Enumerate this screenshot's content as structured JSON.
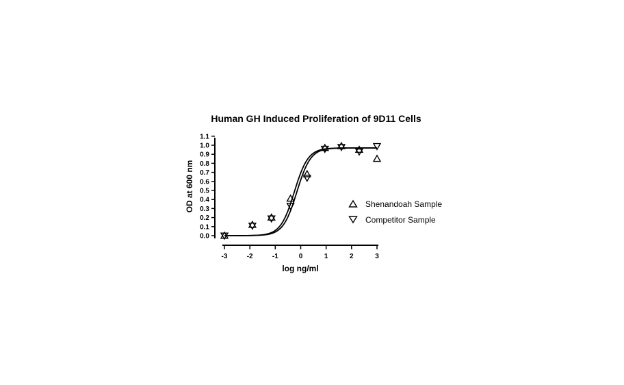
{
  "chart_data": {
    "type": "scatter",
    "title": "Human GH Induced Proliferation of 9D11 Cells",
    "xlabel": "log ng/ml",
    "ylabel": "OD at 600 nm",
    "xlim": [
      -3,
      3
    ],
    "ylim": [
      0.0,
      1.1
    ],
    "x_ticks": [
      -3,
      -2,
      -1,
      0,
      1,
      2,
      3
    ],
    "y_ticks": [
      0.0,
      0.1,
      0.2,
      0.3,
      0.4,
      0.5,
      0.6,
      0.7,
      0.8,
      0.9,
      1.0,
      1.1
    ],
    "x_tick_labels": [
      "-3",
      "-2",
      "-1",
      "0",
      "1",
      "2",
      "3"
    ],
    "y_tick_labels": [
      "0.0",
      "0.1",
      "0.2",
      "0.3",
      "0.4",
      "0.5",
      "0.6",
      "0.7",
      "0.8",
      "0.9",
      "1.0",
      "1.1"
    ],
    "legend_position": "right",
    "series": [
      {
        "name": "Shenandoah Sample",
        "marker": "triangle-up",
        "x": [
          -3.0,
          -1.9,
          -1.15,
          -0.4,
          0.25,
          0.95,
          1.6,
          2.3,
          3.0
        ],
        "y": [
          0.0,
          0.12,
          0.2,
          0.41,
          0.68,
          0.97,
          0.99,
          0.95,
          0.85
        ],
        "fit": {
          "bottom": 0.0,
          "top": 0.97,
          "logEC50": -0.25,
          "hill": 1.6
        }
      },
      {
        "name": "Competitor Sample",
        "marker": "triangle-down",
        "x": [
          -3.0,
          -1.9,
          -1.15,
          -0.4,
          0.25,
          0.95,
          1.6,
          2.3,
          3.0
        ],
        "y": [
          0.0,
          0.11,
          0.19,
          0.33,
          0.64,
          0.96,
          0.98,
          0.93,
          0.99
        ],
        "fit": {
          "bottom": 0.0,
          "top": 0.97,
          "logEC50": -0.15,
          "hill": 1.6
        }
      }
    ]
  }
}
